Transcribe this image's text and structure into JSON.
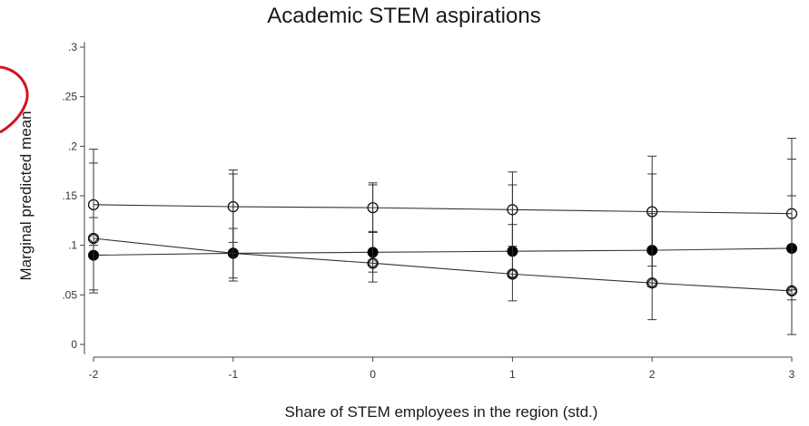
{
  "chart_data": {
    "type": "line",
    "title": "Academic STEM aspirations",
    "xlabel": "Share of STEM employees in the region (std.)",
    "ylabel": "Marginal predicted mean",
    "x": [
      -2,
      -1,
      0,
      1,
      2,
      3
    ],
    "x_tick_labels": [
      "-2",
      "-1",
      "0",
      "1",
      "2",
      "3"
    ],
    "y_ticks": [
      0,
      0.05,
      0.1,
      0.15,
      0.2,
      0.25,
      0.3
    ],
    "y_tick_labels": [
      "0",
      ".05",
      ".1",
      ".15",
      ".2",
      ".25",
      ".3"
    ],
    "xlim": [
      -2,
      3
    ],
    "ylim": [
      -0.01,
      0.305
    ],
    "grid": false,
    "series": [
      {
        "marker": "hollow-circle",
        "values": [
          0.141,
          0.139,
          0.138,
          0.136,
          0.134,
          0.132
        ],
        "ci_low": [
          0.1,
          0.103,
          0.113,
          0.099,
          0.079,
          0.055
        ],
        "ci_high": [
          0.183,
          0.176,
          0.163,
          0.174,
          0.19,
          0.208
        ]
      },
      {
        "marker": "filled-circle",
        "values": [
          0.09,
          0.092,
          0.093,
          0.094,
          0.095,
          0.097
        ],
        "ci_low": [
          0.055,
          0.067,
          0.073,
          0.068,
          0.058,
          0.045
        ],
        "ci_high": [
          0.128,
          0.117,
          0.114,
          0.121,
          0.132,
          0.15
        ]
      },
      {
        "marker": "hollow-diamond",
        "values": [
          0.107,
          0.092,
          0.082,
          0.071,
          0.062,
          0.054
        ],
        "ci_low": [
          0.052,
          0.064,
          0.063,
          0.044,
          0.025,
          0.01
        ],
        "ci_high": [
          0.197,
          0.172,
          0.161,
          0.161,
          0.172,
          0.187
        ]
      }
    ],
    "annotation_color": "#d4141c"
  }
}
